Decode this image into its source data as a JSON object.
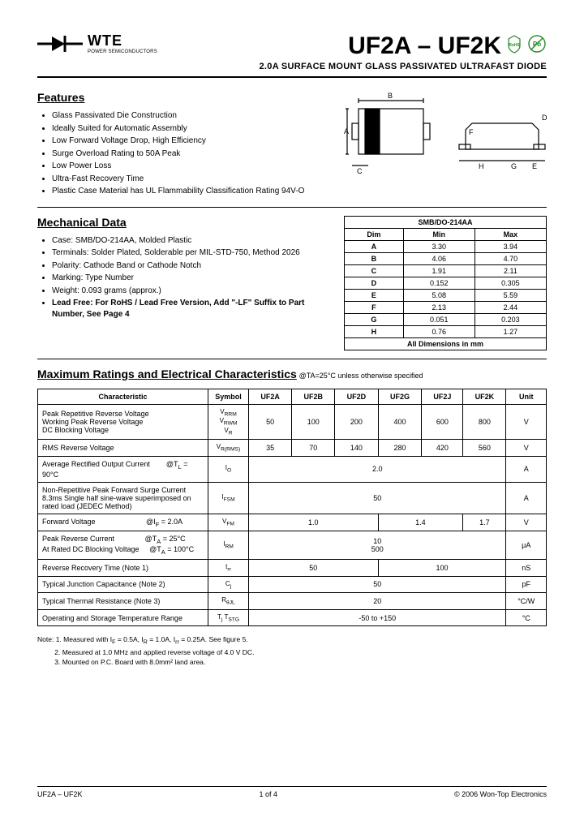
{
  "logo": {
    "brand": "WTE",
    "tagline": "POWER SEMICONDUCTORS"
  },
  "title": {
    "parts": "UF2A – UF2K"
  },
  "subtitle": "2.0A SURFACE MOUNT GLASS PASSIVATED ULTRAFAST DIODE",
  "features": {
    "heading": "Features",
    "items": [
      "Glass Passivated Die Construction",
      "Ideally Suited for Automatic Assembly",
      "Low Forward Voltage Drop, High Efficiency",
      "Surge Overload Rating to 50A Peak",
      "Low Power Loss",
      "Ultra-Fast Recovery Time",
      "Plastic Case Material has UL Flammability Classification Rating 94V-O"
    ]
  },
  "mech": {
    "heading": "Mechanical Data",
    "items": [
      "Case: SMB/DO-214AA, Molded Plastic",
      "Terminals: Solder Plated, Solderable per MIL-STD-750, Method 2026",
      "Polarity: Cathode Band or Cathode Notch",
      "Marking: Type Number",
      "Weight: 0.093 grams (approx.)",
      "Lead Free: For RoHS / Lead Free Version, Add \"-LF\" Suffix to Part Number, See Page 4"
    ]
  },
  "dims": {
    "caption": "SMB/DO-214AA",
    "headers": [
      "Dim",
      "Min",
      "Max"
    ],
    "rows": [
      [
        "A",
        "3.30",
        "3.94"
      ],
      [
        "B",
        "4.06",
        "4.70"
      ],
      [
        "C",
        "1.91",
        "2.11"
      ],
      [
        "D",
        "0.152",
        "0.305"
      ],
      [
        "E",
        "5.08",
        "5.59"
      ],
      [
        "F",
        "2.13",
        "2.44"
      ],
      [
        "G",
        "0.051",
        "0.203"
      ],
      [
        "H",
        "0.76",
        "1.27"
      ]
    ],
    "footer": "All Dimensions in mm"
  },
  "ratings": {
    "heading": "Maximum Ratings and Electrical Characteristics",
    "cond": "@TA=25°C unless otherwise specified",
    "headers": [
      "Characteristic",
      "Symbol",
      "UF2A",
      "UF2B",
      "UF2D",
      "UF2G",
      "UF2J",
      "UF2K",
      "Unit"
    ],
    "rows": [
      {
        "char": "Peak Repetitive Reverse Voltage<br>Working Peak Reverse Voltage<br>DC Blocking Voltage",
        "sym": "V<sub>RRM</sub><br>V<sub>RWM</sub><br>V<sub>R</sub>",
        "vals": [
          "50",
          "100",
          "200",
          "400",
          "600",
          "800"
        ],
        "unit": "V"
      },
      {
        "char": "RMS Reverse Voltage",
        "sym": "V<sub>R(RMS)</sub>",
        "vals": [
          "35",
          "70",
          "140",
          "280",
          "420",
          "560"
        ],
        "unit": "V"
      },
      {
        "char": "Average Rectified Output Current &nbsp;&nbsp;&nbsp;&nbsp;&nbsp;&nbsp; @T<sub>L</sub> = 90°C",
        "sym": "I<sub>O</sub>",
        "span": "2.0",
        "unit": "A"
      },
      {
        "char": "Non-Repetitive Peak Forward Surge Current<br>8.3ms Single half sine-wave superimposed on rated load (JEDEC Method)",
        "sym": "I<sub>FSM</sub>",
        "span": "50",
        "unit": "A"
      },
      {
        "char": "Forward Voltage &nbsp;&nbsp;&nbsp;&nbsp;&nbsp;&nbsp;&nbsp;&nbsp;&nbsp;&nbsp;&nbsp;&nbsp;&nbsp;&nbsp;&nbsp;&nbsp;&nbsp;&nbsp;&nbsp;&nbsp;&nbsp;&nbsp;&nbsp; @I<sub>F</sub> = 2.0A",
        "sym": "V<sub>FM</sub>",
        "groups": [
          [
            "1.0",
            3
          ],
          [
            "1.4",
            2
          ],
          [
            "1.7",
            1
          ]
        ],
        "unit": "V"
      },
      {
        "char": "Peak Reverse Current &nbsp;&nbsp;&nbsp;&nbsp;&nbsp;&nbsp;&nbsp;&nbsp;&nbsp;&nbsp;&nbsp;&nbsp;&nbsp; @T<sub>A</sub> = 25°C<br>At Rated DC Blocking Voltage &nbsp;&nbsp;&nbsp; @T<sub>A</sub> = 100°C",
        "sym": "I<sub>RM</sub>",
        "span": "10<br>500",
        "unit": "μA"
      },
      {
        "char": "Reverse Recovery Time (Note 1)",
        "sym": "t<sub>rr</sub>",
        "groups": [
          [
            "50",
            3
          ],
          [
            "100",
            3
          ]
        ],
        "unit": "nS"
      },
      {
        "char": "Typical Junction Capacitance (Note 2)",
        "sym": "C<sub>j</sub>",
        "span": "50",
        "unit": "pF"
      },
      {
        "char": "Typical Thermal Resistance (Note 3)",
        "sym": "R<sub>θJL</sub>",
        "span": "20",
        "unit": "°C/W"
      },
      {
        "char": "Operating and Storage Temperature Range",
        "sym": "T<sub>j</sub> T<sub>STG</sub>",
        "span": "-50 to +150",
        "unit": "°C"
      }
    ]
  },
  "notes": {
    "intro": "Note:",
    "items": [
      "1. Measured with I<sub>F</sub> = 0.5A, I<sub>R</sub> = 1.0A, I<sub>rr</sub> = 0.25A. See figure 5.",
      "2. Measured at 1.0 MHz and applied reverse voltage of 4.0 V DC.",
      "3. Mounted on P.C. Board with 8.0mm² land area."
    ]
  },
  "footer": {
    "left": "UF2A – UF2K",
    "center": "1 of 4",
    "right": "© 2006 Won-Top Electronics"
  }
}
